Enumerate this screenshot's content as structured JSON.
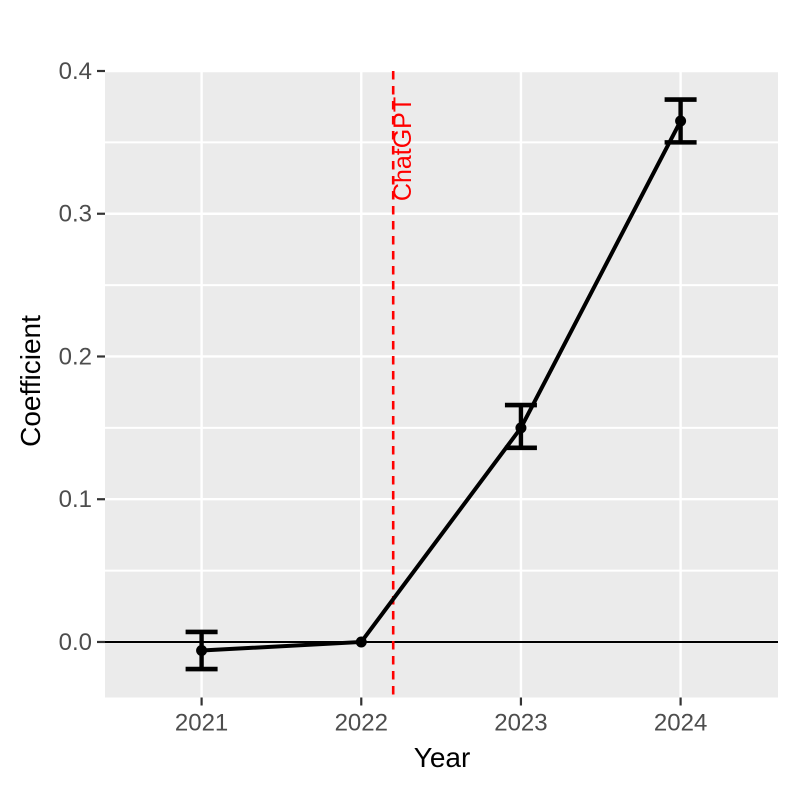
{
  "chart_data": {
    "type": "line",
    "title": "",
    "xlabel": "Year",
    "ylabel": "Coefficient",
    "x_ticks": [
      2021,
      2022,
      2023,
      2024
    ],
    "x_tick_labels": [
      "2021",
      "2022",
      "2023",
      "2024"
    ],
    "y_ticks": [
      0.0,
      0.1,
      0.2,
      0.3,
      0.4
    ],
    "y_tick_labels": [
      "0.0",
      "0.1",
      "0.2",
      "0.3",
      "0.4"
    ],
    "y_minor_breaks": [
      0.05,
      0.15,
      0.25,
      0.35
    ],
    "xlim": [
      2020.395,
      2024.61
    ],
    "ylim": [
      -0.0389,
      0.4
    ],
    "grid": true,
    "legend": "none",
    "series": [
      {
        "name": "coefficient-estimates",
        "points": [
          {
            "x": 2021,
            "y": -0.006,
            "lower": -0.019,
            "upper": 0.007
          },
          {
            "x": 2022,
            "y": 0.0,
            "lower": 0.0,
            "upper": 0.0
          },
          {
            "x": 2023,
            "y": 0.15,
            "lower": 0.136,
            "upper": 0.166
          },
          {
            "x": 2024,
            "y": 0.365,
            "lower": 0.35,
            "upper": 0.38
          }
        ]
      }
    ],
    "reference_lines": {
      "hline": {
        "y": 0.0
      },
      "vline": {
        "x": 2022.2,
        "label": "ChatGPT",
        "style": "dashed"
      }
    },
    "colors": {
      "line": "#000000",
      "point": "#000000",
      "vline": "#FF0000",
      "vline_label": "#FF0000",
      "hline": "#000000",
      "panel_bg": "#EBEBEB",
      "grid": "#FFFFFF",
      "tick_mark": "#333333",
      "tick_label": "#4D4D4D",
      "axis_title": "#000000"
    }
  }
}
